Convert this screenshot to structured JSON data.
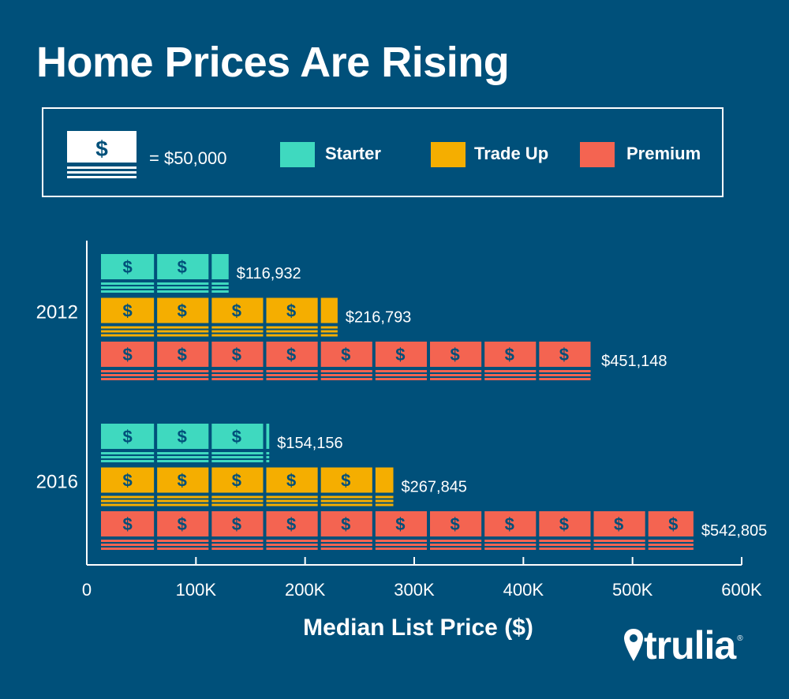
{
  "title": "Home Prices Are Rising",
  "legend": {
    "note_symbol": "$",
    "note_value": "= $50,000",
    "items": [
      {
        "label": "Starter",
        "color": "#3fd9bf"
      },
      {
        "label": "Trade Up",
        "color": "#f5ae00"
      },
      {
        "label": "Premium",
        "color": "#f46451"
      }
    ]
  },
  "colors": {
    "background": "#00507a",
    "note_stripe": "#00507a"
  },
  "brand": {
    "name": "trulia",
    "reg": "®"
  },
  "chart_data": {
    "type": "bar",
    "orientation": "horizontal",
    "categories": [
      "2012",
      "2016"
    ],
    "series": [
      {
        "name": "Starter",
        "values": [
          116932,
          154156
        ],
        "labels": [
          "$116,932",
          "$154,156"
        ]
      },
      {
        "name": "Trade Up",
        "values": [
          216793,
          267845
        ],
        "labels": [
          "$216,793",
          "$267,845"
        ]
      },
      {
        "name": "Premium",
        "values": [
          451148,
          542805
        ],
        "labels": [
          "$451,148",
          "$542,805"
        ]
      }
    ],
    "unit_value": 50000,
    "unit_symbol": "$",
    "xlabel": "Median List Price ($)",
    "ylabel": "",
    "xlim": [
      0,
      600000
    ],
    "xticks": [
      0,
      100000,
      200000,
      300000,
      400000,
      500000,
      600000
    ],
    "xtick_labels": [
      "0",
      "100K",
      "200K",
      "300K",
      "400K",
      "500K",
      "600K"
    ],
    "grid": false
  }
}
